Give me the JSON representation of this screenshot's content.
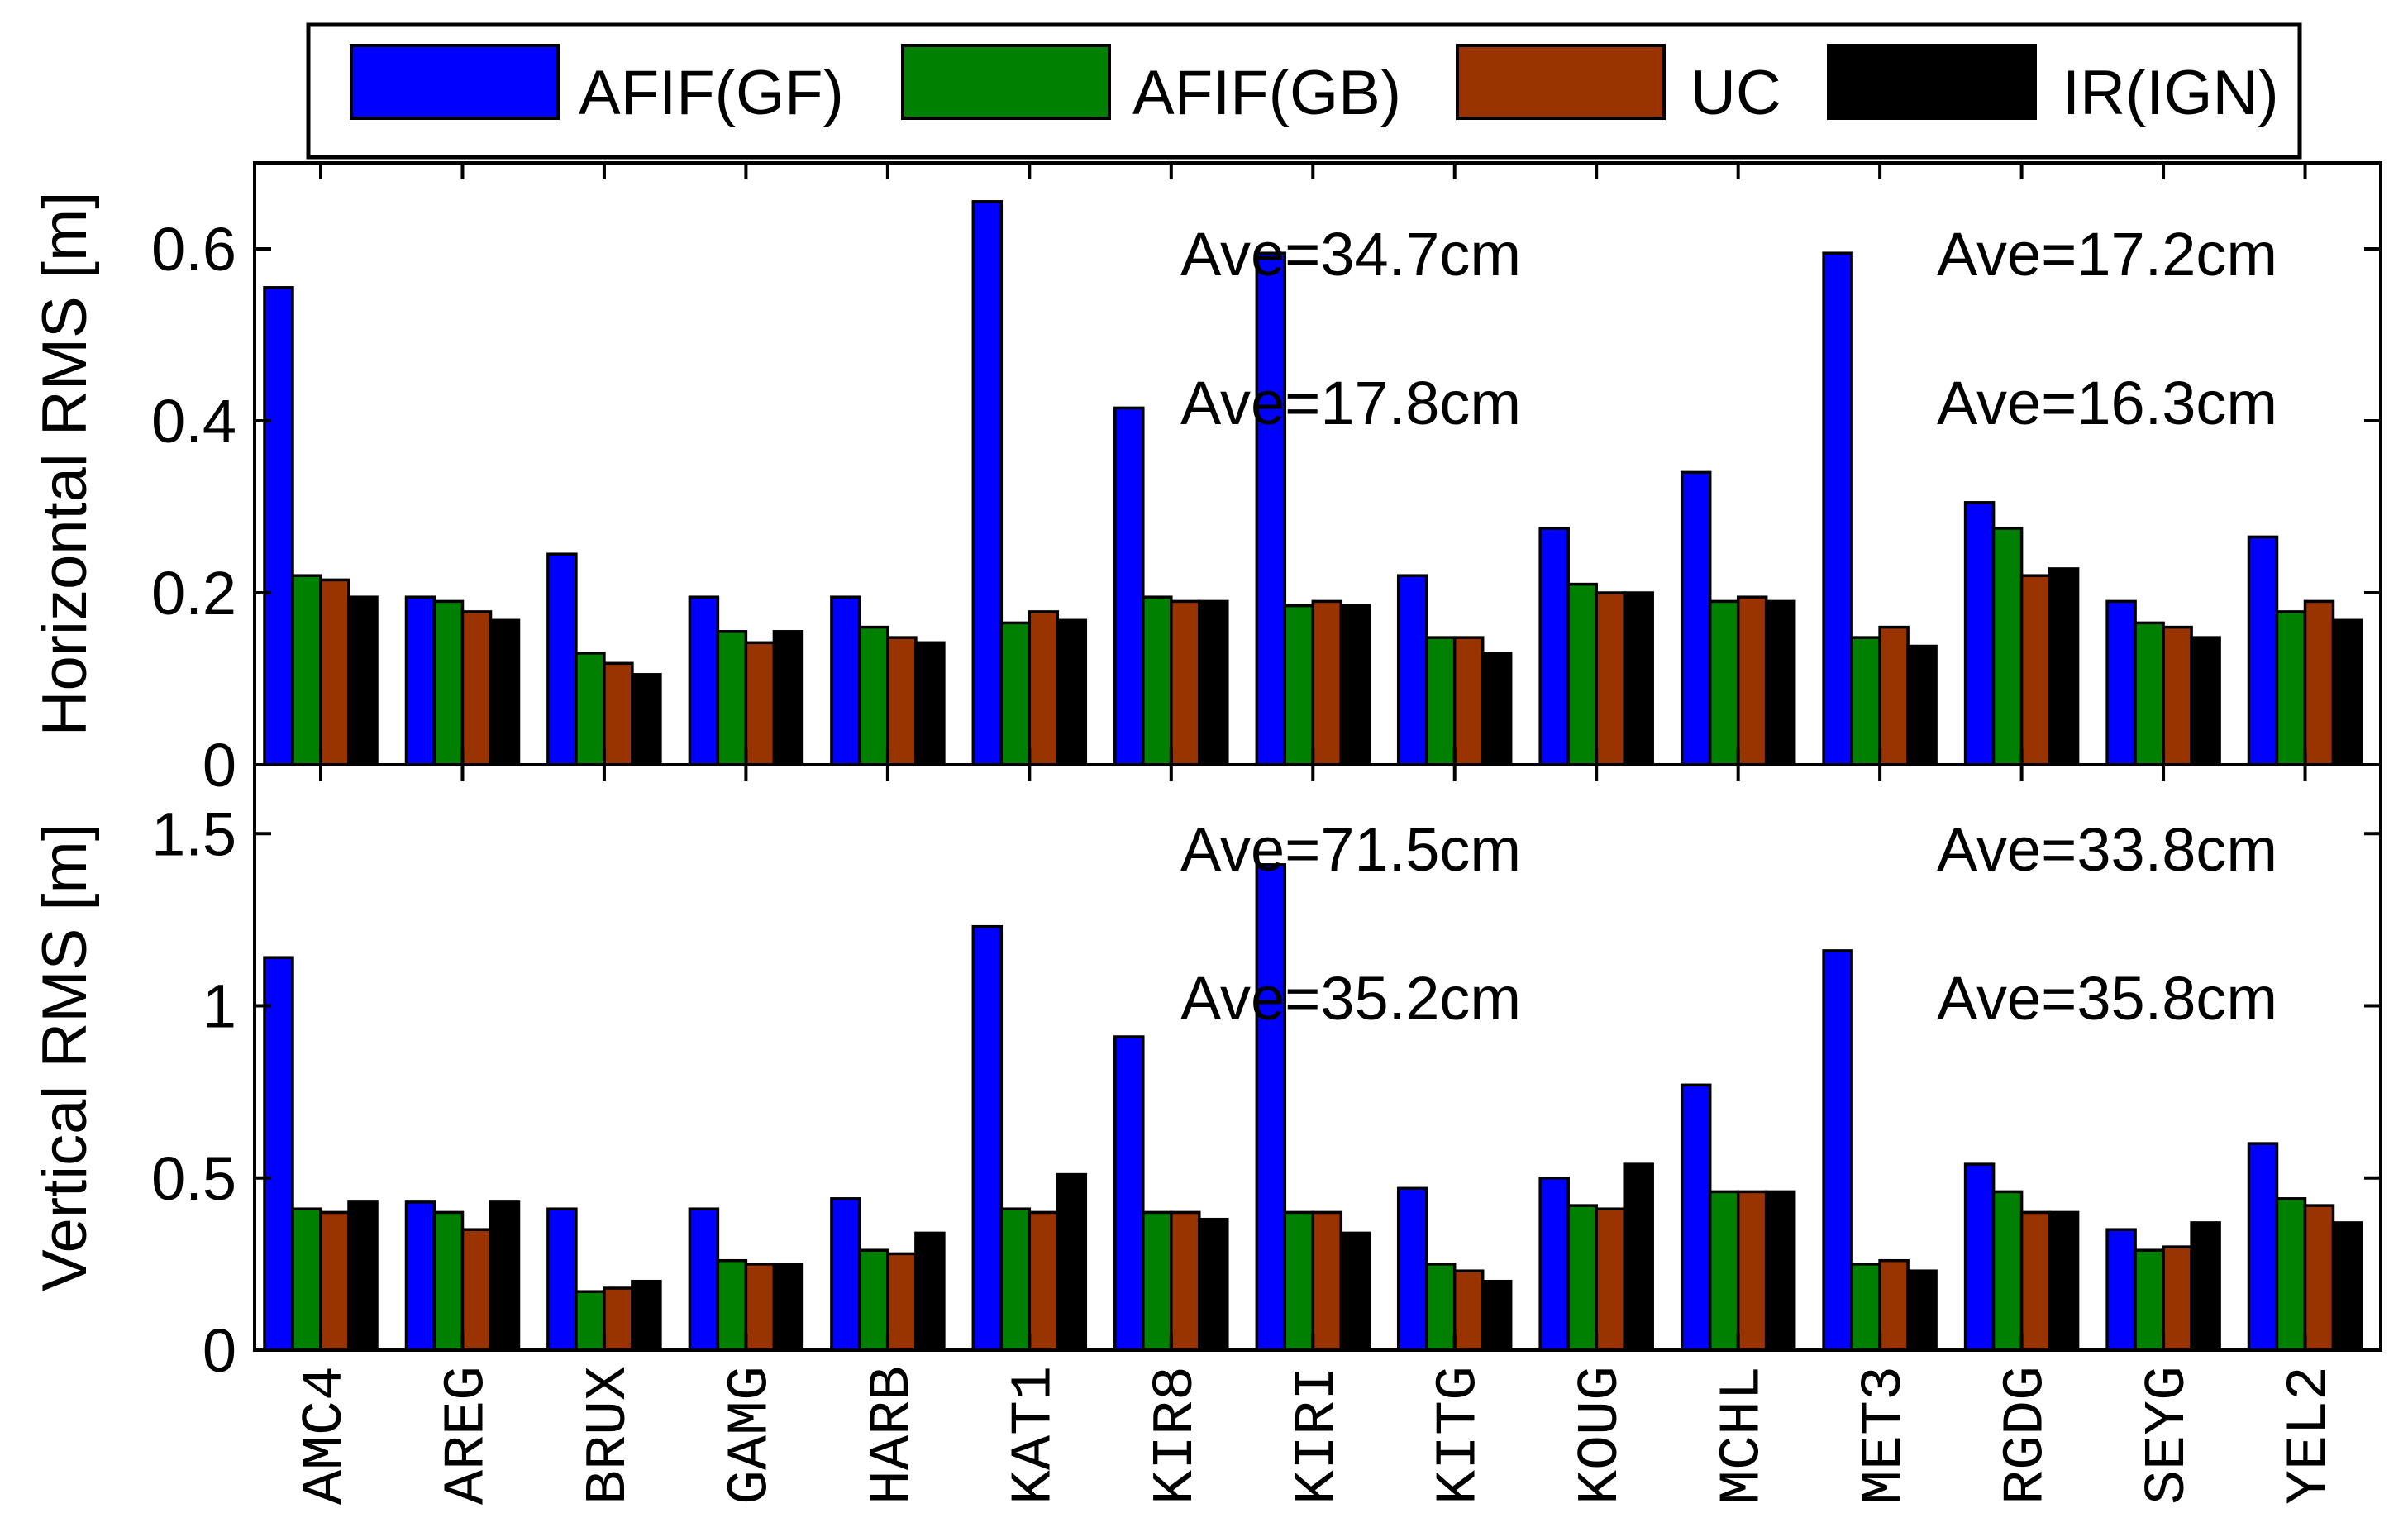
{
  "chart_data": [
    {
      "type": "bar",
      "panel": "horizontal",
      "ylabel": "Horizontal RMS [m]",
      "ylim": [
        0,
        0.7
      ],
      "yticks": [
        0,
        0.2,
        0.4,
        0.6
      ],
      "ytick_labels": [
        "0",
        "0.2",
        "0.4",
        "0.6"
      ],
      "categories": [
        "AMC4",
        "AREG",
        "BRUX",
        "GAMG",
        "HARB",
        "KAT1",
        "KIR8",
        "KIRI",
        "KITG",
        "KOUG",
        "MCHL",
        "MET3",
        "RGDG",
        "SEYG",
        "YEL2"
      ],
      "series": [
        {
          "name": "AFIF(GF)",
          "color": "#0000ff",
          "values": [
            0.555,
            0.195,
            0.245,
            0.195,
            0.195,
            0.655,
            0.415,
            0.595,
            0.22,
            0.275,
            0.34,
            0.595,
            0.305,
            0.19,
            0.265
          ]
        },
        {
          "name": "AFIF(GB)",
          "color": "#008000",
          "values": [
            0.22,
            0.19,
            0.13,
            0.155,
            0.16,
            0.165,
            0.195,
            0.185,
            0.148,
            0.21,
            0.19,
            0.148,
            0.275,
            0.165,
            0.178
          ]
        },
        {
          "name": "UC",
          "color": "#993300",
          "values": [
            0.215,
            0.178,
            0.118,
            0.142,
            0.148,
            0.178,
            0.19,
            0.19,
            0.148,
            0.2,
            0.195,
            0.16,
            0.22,
            0.16,
            0.19
          ]
        },
        {
          "name": "IR(IGN)",
          "color": "#000000",
          "values": [
            0.195,
            0.168,
            0.105,
            0.155,
            0.142,
            0.168,
            0.19,
            0.185,
            0.13,
            0.2,
            0.19,
            0.138,
            0.228,
            0.148,
            0.168
          ]
        }
      ],
      "annotations": [
        {
          "text": "Ave=34.7cm",
          "color": "#0000ff",
          "column": "left",
          "row": "top"
        },
        {
          "text": "Ave=17.2cm",
          "color": "#993300",
          "column": "right",
          "row": "top"
        },
        {
          "text": "Ave=17.8cm",
          "color": "#008000",
          "column": "left",
          "row": "bottom"
        },
        {
          "text": "Ave=16.3cm",
          "color": "#000000",
          "column": "right",
          "row": "bottom"
        }
      ]
    },
    {
      "type": "bar",
      "panel": "vertical",
      "ylabel": "Vertical RMS [m]",
      "ylim": [
        0,
        1.7
      ],
      "yticks": [
        0,
        0.5,
        1,
        1.5
      ],
      "ytick_labels": [
        "0",
        "0.5",
        "1",
        "1.5"
      ],
      "categories": [
        "AMC4",
        "AREG",
        "BRUX",
        "GAMG",
        "HARB",
        "KAT1",
        "KIR8",
        "KIRI",
        "KITG",
        "KOUG",
        "MCHL",
        "MET3",
        "RGDG",
        "SEYG",
        "YEL2"
      ],
      "series": [
        {
          "name": "AFIF(GF)",
          "color": "#0000ff",
          "values": [
            1.14,
            0.43,
            0.41,
            0.41,
            0.44,
            1.23,
            0.91,
            1.41,
            0.47,
            0.5,
            0.77,
            1.16,
            0.54,
            0.35,
            0.6
          ]
        },
        {
          "name": "AFIF(GB)",
          "color": "#008000",
          "values": [
            0.41,
            0.4,
            0.17,
            0.26,
            0.29,
            0.41,
            0.4,
            0.4,
            0.25,
            0.42,
            0.46,
            0.25,
            0.46,
            0.29,
            0.44
          ]
        },
        {
          "name": "UC",
          "color": "#993300",
          "values": [
            0.4,
            0.35,
            0.18,
            0.25,
            0.28,
            0.4,
            0.4,
            0.4,
            0.23,
            0.41,
            0.46,
            0.26,
            0.4,
            0.3,
            0.42
          ]
        },
        {
          "name": "IR(IGN)",
          "color": "#000000",
          "values": [
            0.43,
            0.43,
            0.2,
            0.25,
            0.34,
            0.51,
            0.38,
            0.34,
            0.2,
            0.54,
            0.46,
            0.23,
            0.4,
            0.37,
            0.37
          ]
        }
      ],
      "annotations": [
        {
          "text": "Ave=71.5cm",
          "color": "#0000ff",
          "column": "left",
          "row": "top"
        },
        {
          "text": "Ave=33.8cm",
          "color": "#993300",
          "column": "right",
          "row": "top"
        },
        {
          "text": "Ave=35.2cm",
          "color": "#008000",
          "column": "left",
          "row": "bottom"
        },
        {
          "text": "Ave=35.8cm",
          "color": "#000000",
          "column": "right",
          "row": "bottom"
        }
      ]
    }
  ],
  "legend": {
    "placement": "top-center",
    "entries": [
      {
        "label": "AFIF(GF)",
        "color": "#0000ff"
      },
      {
        "label": "AFIF(GB)",
        "color": "#008000"
      },
      {
        "label": "UC",
        "color": "#993300"
      },
      {
        "label": "IR(IGN)",
        "color": "#000000"
      }
    ]
  }
}
